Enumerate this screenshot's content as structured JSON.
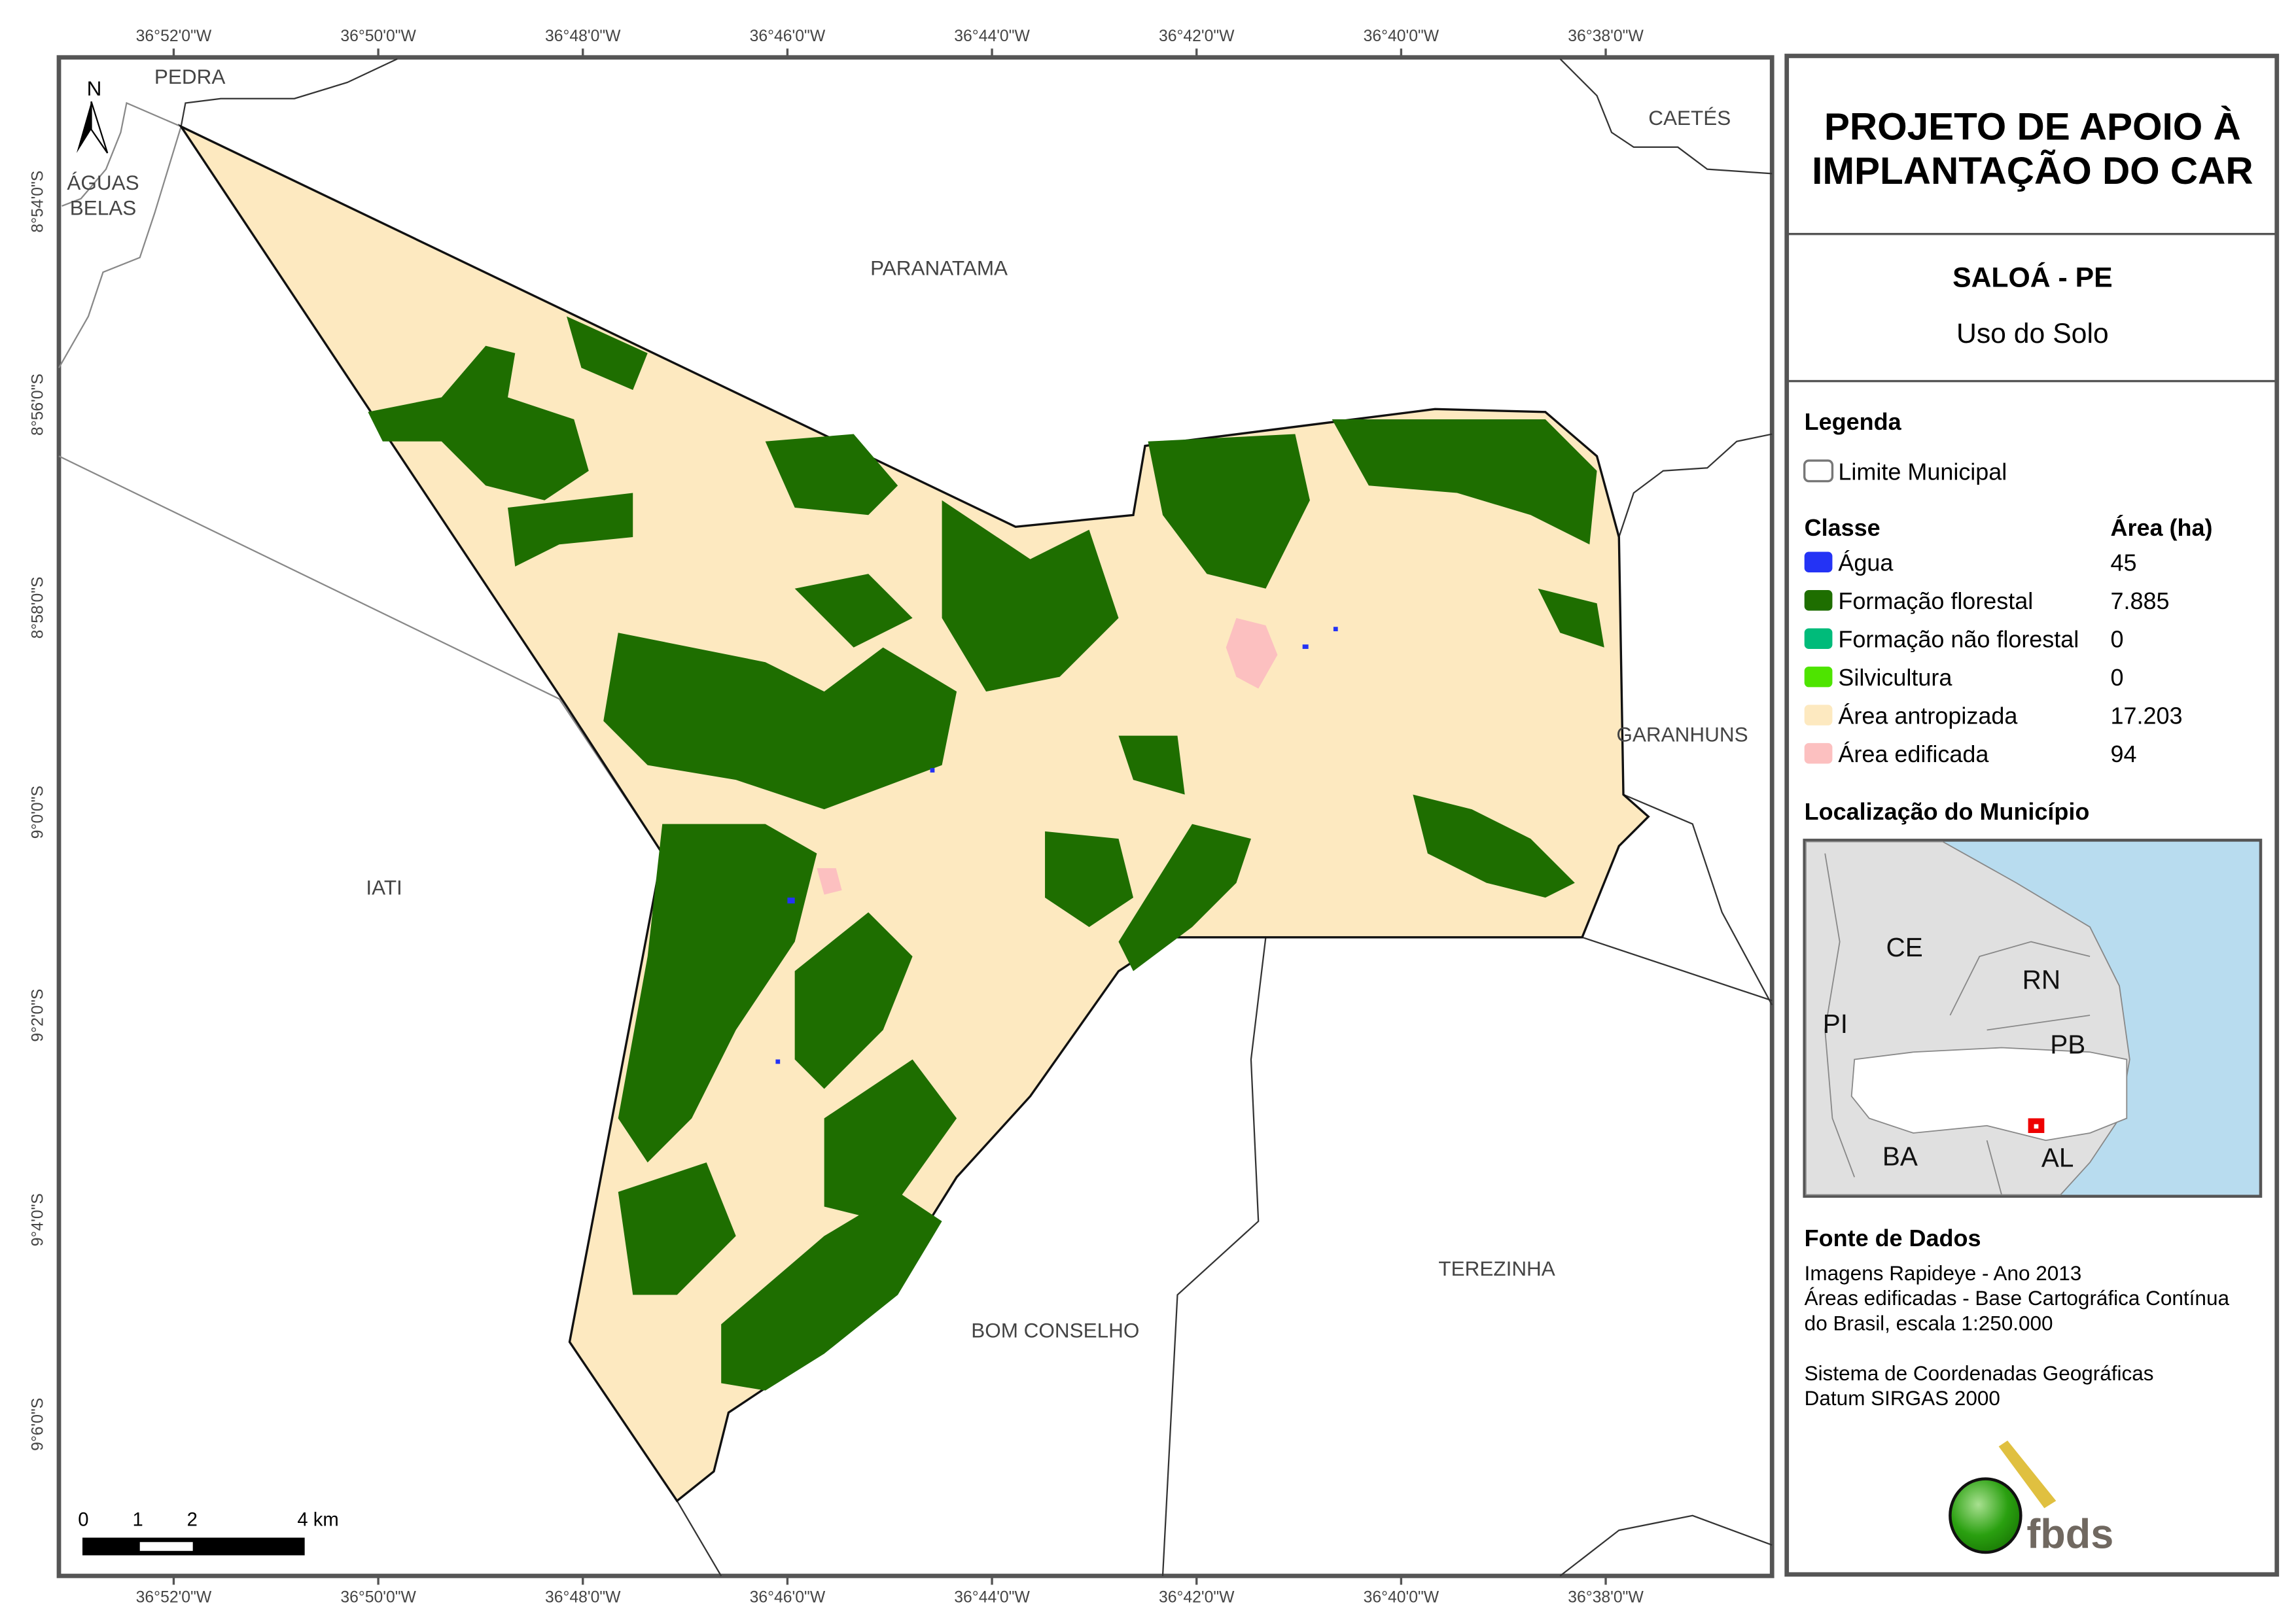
{
  "title": {
    "line1": "PROJETO DE APOIO À",
    "line2": "IMPLANTAÇÃO DO CAR"
  },
  "municipality": "SALOÁ - PE",
  "theme": "Uso do Solo",
  "legend": {
    "heading": "Legenda",
    "boundary_label": "Limite Municipal",
    "class_header": "Classe",
    "area_header": "Área (ha)",
    "classes": [
      {
        "label": "Água",
        "area": "45",
        "color": "#2433f5"
      },
      {
        "label": "Formação florestal",
        "area": "7.885",
        "color": "#1e6e00"
      },
      {
        "label": "Formação não florestal",
        "area": "0",
        "color": "#00bb7a"
      },
      {
        "label": "Silvicultura",
        "area": "0",
        "color": "#4ee400"
      },
      {
        "label": "Área antropizada",
        "area": "17.203",
        "color": "#fde9c0"
      },
      {
        "label": "Área edificada",
        "area": "94",
        "color": "#fcc0c0"
      }
    ]
  },
  "location": {
    "heading": "Localização do Município",
    "states": [
      "CE",
      "RN",
      "PI",
      "PB",
      "BA",
      "AL"
    ]
  },
  "sources": {
    "heading": "Fonte de Dados",
    "lines": [
      "Imagens Rapideye - Ano 2013",
      "Áreas edificadas - Base Cartográfica Contínua",
      "do Brasil, escala 1:250.000",
      "Sistema de Coordenadas Geográficas",
      "Datum SIRGAS 2000"
    ]
  },
  "logo_text": "fbds",
  "map": {
    "north_label": "N",
    "longitudes": [
      "36°52'0\"W",
      "36°50'0\"W",
      "36°48'0\"W",
      "36°46'0\"W",
      "36°44'0\"W",
      "36°42'0\"W",
      "36°40'0\"W",
      "36°38'0\"W"
    ],
    "latitudes": [
      "8°54'0\"S",
      "8°56'0\"S",
      "8°58'0\"S",
      "9°0'0\"S",
      "9°2'0\"S",
      "9°4'0\"S",
      "9°6'0\"S"
    ],
    "neighbors": {
      "pedra": "PEDRA",
      "aguas1": "ÁGUAS",
      "aguas2": "BELAS",
      "paranatama": "PARANATAMA",
      "caetes": "CAETÉS",
      "garanhuns": "GARANHUNS",
      "iati": "IATI",
      "bom_conselho": "BOM CONSELHO",
      "terezinha": "TEREZINHA"
    },
    "scale": {
      "ticks": [
        "0",
        "1",
        "2",
        "4 km"
      ]
    }
  }
}
